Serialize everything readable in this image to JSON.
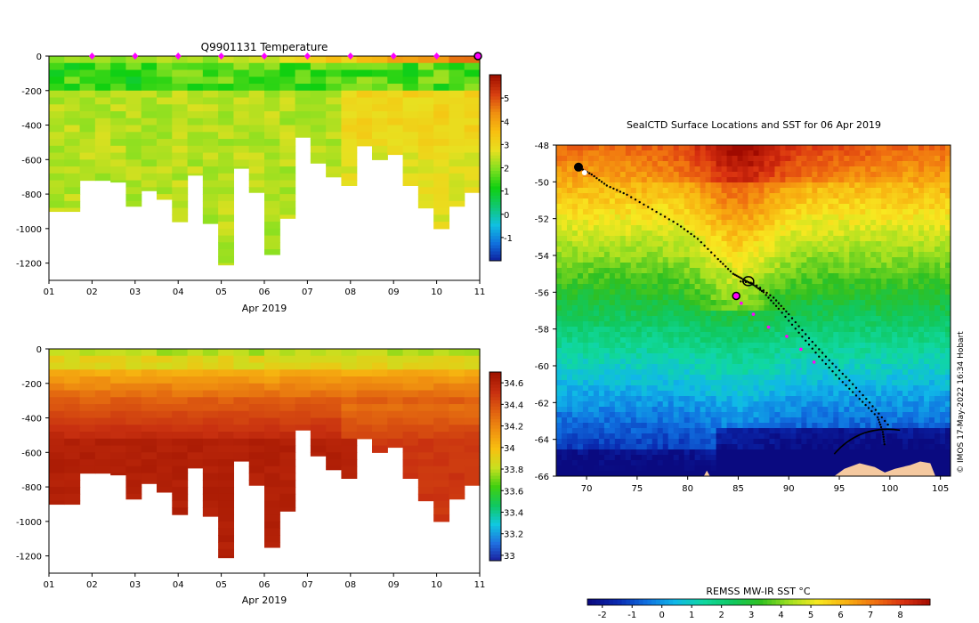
{
  "colors": {
    "temperature_scale": [
      "#0d1a9a",
      "#1070dd",
      "#10c0e0",
      "#10c870",
      "#10d010",
      "#80e020",
      "#e8e020",
      "#f8c010",
      "#f09010",
      "#d84010",
      "#a01000"
    ],
    "salinity_scale": [
      "#1a1a9a",
      "#2070e0",
      "#10c8e0",
      "#10c860",
      "#40d010",
      "#c8e020",
      "#f8c010",
      "#f09010",
      "#e06010",
      "#c83010",
      "#a01400"
    ],
    "sst_scale": [
      "#0a0a80",
      "#0a2ab0",
      "#1070e0",
      "#10b8e8",
      "#10d8a0",
      "#10c860",
      "#30c020",
      "#a0e020",
      "#f8e820",
      "#f8b010",
      "#f07010",
      "#d83010",
      "#a00a00"
    ],
    "marker": "#ff00ff",
    "land": "#f5c9a0"
  },
  "chart_data": [
    {
      "id": "temperature-profile",
      "type": "heatmap",
      "title": "Q9901131  Temperature",
      "xlabel": "Apr 2019",
      "ylabel": "",
      "x_tick_labels": [
        "01",
        "02",
        "03",
        "04",
        "05",
        "06",
        "07",
        "08",
        "09",
        "10",
        "11"
      ],
      "y_ticks": [
        0,
        -200,
        -400,
        -600,
        -800,
        -1000,
        -1200
      ],
      "xlim": [
        1,
        11
      ],
      "ylim": [
        -1300,
        0
      ],
      "colorbar": {
        "ticks": [
          -1,
          0,
          1,
          2,
          3,
          4,
          5
        ],
        "range": [
          -2,
          6
        ]
      },
      "profile_max_depths": [
        900,
        900,
        720,
        720,
        730,
        870,
        780,
        830,
        960,
        690,
        970,
        1210,
        650,
        790,
        1150,
        940,
        470,
        620,
        700,
        750,
        520,
        600,
        570,
        750,
        880,
        1000,
        870,
        790
      ],
      "profile_surface_temp": [
        2.0,
        2.1,
        2.2,
        2.3,
        2.0,
        2.1,
        2.2,
        2.3,
        2.2,
        2.4,
        2.2,
        2.5,
        2.4,
        2.7,
        2.6,
        2.8,
        3.0,
        3.2,
        3.5,
        3.2,
        3.6,
        3.8,
        4.0,
        4.0,
        4.2,
        4.3,
        4.5,
        4.8
      ],
      "profile_marker_days": [
        2,
        3,
        4,
        5,
        6,
        7,
        8,
        9,
        10
      ]
    },
    {
      "id": "salinity-profile",
      "type": "heatmap",
      "title": "",
      "xlabel": "Apr 2019",
      "ylabel": "",
      "x_tick_labels": [
        "01",
        "02",
        "03",
        "04",
        "05",
        "06",
        "07",
        "08",
        "09",
        "10",
        "11"
      ],
      "y_ticks": [
        0,
        -200,
        -400,
        -600,
        -800,
        -1000,
        -1200
      ],
      "xlim": [
        1,
        11
      ],
      "ylim": [
        -1300,
        0
      ],
      "colorbar": {
        "ticks": [
          33,
          33.2,
          33.4,
          33.6,
          33.8,
          34,
          34.2,
          34.4,
          34.6
        ],
        "range": [
          32.95,
          34.7
        ]
      }
    },
    {
      "id": "sst-map",
      "type": "heatmap",
      "title": "SealCTD Surface Locations and SST for 06 Apr 2019",
      "xlabel": "",
      "ylabel": "",
      "x_ticks": [
        70,
        75,
        80,
        85,
        90,
        95,
        100,
        105
      ],
      "y_ticks": [
        -48,
        -50,
        -52,
        -54,
        -56,
        -58,
        -60,
        -62,
        -64,
        -66
      ],
      "xlim": [
        67,
        106
      ],
      "ylim": [
        -66,
        -48
      ],
      "colorbar": {
        "label": "REMSS MW-IR SST °C",
        "ticks": [
          -2,
          -1,
          0,
          1,
          2,
          3,
          4,
          5,
          6,
          7,
          8
        ],
        "range": [
          -2.5,
          9
        ]
      },
      "current_position": {
        "lon": 84.8,
        "lat": -56.2
      },
      "track": [
        [
          69.2,
          -49.2
        ],
        [
          70.5,
          -49.6
        ],
        [
          72,
          -50.2
        ],
        [
          74,
          -50.7
        ],
        [
          76.5,
          -51.5
        ],
        [
          79,
          -52.3
        ],
        [
          81,
          -53.1
        ],
        [
          83,
          -54.2
        ],
        [
          84.5,
          -55.0
        ],
        [
          85.5,
          -55.3
        ],
        [
          86.5,
          -55.6
        ],
        [
          87.5,
          -56.0
        ],
        [
          89,
          -56.9
        ],
        [
          91,
          -58.2
        ],
        [
          93,
          -59.5
        ],
        [
          95,
          -60.7
        ],
        [
          97,
          -61.8
        ],
        [
          98.8,
          -62.8
        ],
        [
          99.3,
          -63.6
        ],
        [
          99.5,
          -64.4
        ]
      ],
      "recent_track": [
        [
          85.3,
          -56.6
        ],
        [
          86.5,
          -57.2
        ],
        [
          88,
          -57.9
        ],
        [
          89.8,
          -58.4
        ],
        [
          91.2,
          -59.1
        ],
        [
          92.5,
          -59.8
        ]
      ]
    }
  ],
  "watermark": "© IMOS 17-May-2022 16:34 Hobart"
}
